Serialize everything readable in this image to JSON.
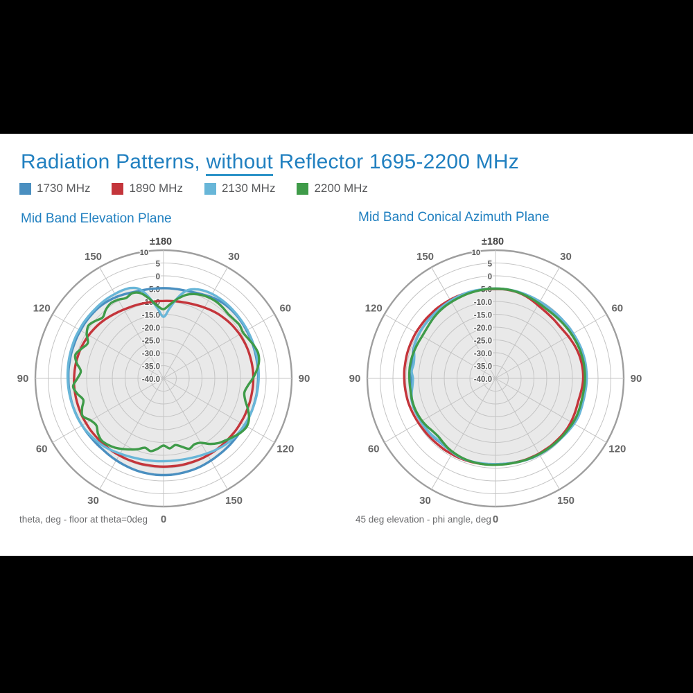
{
  "page": {
    "letterbox_color": "#000000",
    "slide_bg": "#ffffff"
  },
  "title": {
    "part1": "Radiation Patterns, ",
    "underlined": "without",
    "part2": " Reflector 1695-2200 MHz",
    "color": "#2180c0"
  },
  "legend": {
    "items": [
      {
        "label": "1730 MHz",
        "color": "#4a8fc0"
      },
      {
        "label": "1890 MHz",
        "color": "#c4353b"
      },
      {
        "label": "2130 MHz",
        "color": "#68b6d8"
      },
      {
        "label": "2200 MHz",
        "color": "#3f9b49"
      }
    ]
  },
  "styles": {
    "grid_color": "#c4c4c4",
    "outer_ring_color": "#9e9e9e",
    "area_fill": "#e9e9e9",
    "angle_label_color": "#666666",
    "top_label_color": "#444444",
    "tick_label_color": "#555555",
    "tick_halo": "#f7f7f7"
  },
  "chart_data": [
    {
      "type": "line",
      "polar": true,
      "title": "Mid Band Elevation Plane",
      "caption": "theta, deg - floor at theta=0deg",
      "angle_labels": [
        "±180",
        "30",
        "60",
        "90",
        "120",
        "150",
        "0",
        "30",
        "60",
        "90",
        "120",
        "150"
      ],
      "r_axis": {
        "min": -40,
        "max": 10,
        "step": 5,
        "tick_values": [
          10,
          5,
          0,
          -5,
          -10,
          -15,
          -20,
          -25,
          -30,
          -35,
          -40
        ],
        "tick_labels": [
          "10",
          "5",
          "0",
          "-5.0",
          "-10.0",
          "-15.0",
          "-20.0",
          "-25.0",
          "-30.0",
          "-35.0",
          "-40.0"
        ]
      },
      "angles": {
        "start": 0,
        "step": 5,
        "count": 72,
        "direction": "clockwise-from-top"
      },
      "series": [
        {
          "name": "1730 MHz",
          "color": "#4a8fc0",
          "values": [
            -4.8,
            -4.8,
            -4.8,
            -4.7,
            -4.4,
            -3.9,
            -3.3,
            -2.8,
            -2.5,
            -2.4,
            -2.4,
            -2.5,
            -2.6,
            -2.7,
            -2.8,
            -2.9,
            -3.0,
            -3.0,
            -3.1,
            -3.2,
            -3.2,
            -3.3,
            -3.3,
            -3.4,
            -3.4,
            -3.5,
            -3.5,
            -3.4,
            -3.3,
            -3.2,
            -3.0,
            -2.8,
            -2.6,
            -2.5,
            -2.4,
            -2.3,
            -2.3,
            -2.3,
            -2.4,
            -2.5,
            -2.7,
            -2.9,
            -3.1,
            -3.3,
            -3.5,
            -3.5,
            -3.5,
            -3.4,
            -3.3,
            -3.2,
            -3.1,
            -3.0,
            -3.0,
            -2.9,
            -2.9,
            -2.8,
            -2.8,
            -2.7,
            -2.7,
            -2.6,
            -2.6,
            -2.5,
            -2.5,
            -2.5,
            -2.6,
            -2.9,
            -3.3,
            -3.8,
            -4.3,
            -4.6,
            -4.7,
            -4.8
          ]
        },
        {
          "name": "1890 MHz",
          "color": "#c4353b",
          "values": [
            -9.8,
            -9.7,
            -9.5,
            -9.3,
            -9.0,
            -8.6,
            -8.1,
            -7.6,
            -7.1,
            -6.7,
            -6.3,
            -6.0,
            -5.7,
            -5.5,
            -5.3,
            -5.2,
            -5.1,
            -5.0,
            -5.0,
            -5.0,
            -5.1,
            -5.1,
            -5.2,
            -5.2,
            -5.3,
            -5.3,
            -5.4,
            -5.4,
            -5.4,
            -5.4,
            -5.4,
            -5.4,
            -5.5,
            -5.5,
            -5.5,
            -5.6,
            -5.6,
            -5.6,
            -5.6,
            -5.5,
            -5.5,
            -5.4,
            -5.4,
            -5.3,
            -5.3,
            -5.2,
            -5.2,
            -5.1,
            -5.1,
            -5.0,
            -5.0,
            -5.0,
            -5.0,
            -5.0,
            -5.1,
            -5.2,
            -5.3,
            -5.5,
            -5.7,
            -6.0,
            -6.3,
            -6.7,
            -7.1,
            -7.6,
            -8.1,
            -8.6,
            -9.0,
            -9.3,
            -9.5,
            -9.7,
            -9.8,
            -9.8
          ]
        },
        {
          "name": "2130 MHz",
          "color": "#68b6d8",
          "values": [
            -16,
            -12.5,
            -8,
            -4.5,
            -3,
            -2.3,
            -2,
            -1.9,
            -1.9,
            -2,
            -2.1,
            -2.2,
            -2.3,
            -2.4,
            -2.5,
            -2.6,
            -2.7,
            -2.8,
            -2.9,
            -3,
            -3.1,
            -3.2,
            -3.3,
            -3.4,
            -3.6,
            -3.8,
            -4.1,
            -4.5,
            -5,
            -5.6,
            -6.2,
            -6.7,
            -7.1,
            -7.4,
            -7.6,
            -7.7,
            -7.7,
            -7.6,
            -7.5,
            -7.3,
            -7.0,
            -6.6,
            -6.1,
            -5.5,
            -4.9,
            -4.4,
            -4.0,
            -3.6,
            -3.3,
            -3.1,
            -3.0,
            -2.9,
            -2.8,
            -2.7,
            -2.6,
            -2.5,
            -2.4,
            -2.3,
            -2.2,
            -2.1,
            -2.1,
            -2.0,
            -2.0,
            -2.0,
            -1.9,
            -1.9,
            -2.0,
            -2.1,
            -2.5,
            -4.0,
            -8.0,
            -12.5
          ]
        },
        {
          "name": "2200 MHz",
          "color": "#3f9b49",
          "values": [
            -13,
            -11,
            -8.5,
            -6.3,
            -5,
            -4.2,
            -3.8,
            -3.7,
            -4,
            -4.4,
            -4.2,
            -3.8,
            -4.2,
            -3.5,
            -2.5,
            -1.8,
            -2.2,
            -3.5,
            -5.2,
            -7,
            -8,
            -7,
            -5,
            -3.2,
            -2.5,
            -3.2,
            -4.5,
            -5.8,
            -7,
            -8.8,
            -11,
            -11.6,
            -10.8,
            -12.4,
            -13.6,
            -12.6,
            -13.8,
            -12.4,
            -11.2,
            -12,
            -10.6,
            -9.4,
            -8.2,
            -7,
            -6.2,
            -5.8,
            -6.6,
            -8,
            -7.2,
            -5.2,
            -6.2,
            -7.6,
            -5.8,
            -4.6,
            -6.4,
            -7.6,
            -5.6,
            -4.4,
            -6,
            -7.4,
            -5.4,
            -4.2,
            -5.2,
            -6.4,
            -5,
            -4.2,
            -4.6,
            -5.4,
            -4.6,
            -5.6,
            -8.5,
            -11.5
          ]
        }
      ]
    },
    {
      "type": "line",
      "polar": true,
      "title": "Mid Band Conical Azimuth Plane",
      "caption": "45 deg elevation - phi angle, deg",
      "angle_labels": [
        "±180",
        "30",
        "60",
        "90",
        "120",
        "150",
        "0",
        "30",
        "60",
        "90",
        "120",
        "150"
      ],
      "r_axis": {
        "min": -40,
        "max": 10,
        "step": 5,
        "tick_values": [
          10,
          5,
          0,
          -5,
          -10,
          -15,
          -20,
          -25,
          -30,
          -35,
          -40
        ],
        "tick_labels": [
          "10",
          "5",
          "0",
          "-5.0",
          "-10.0",
          "-15.0",
          "-20.0",
          "-25.0",
          "-30.0",
          "-35.0",
          "-40.0"
        ]
      },
      "angles": {
        "start": 0,
        "step": 5,
        "count": 72,
        "direction": "clockwise-from-top"
      },
      "series": [
        {
          "name": "1730 MHz",
          "color": "#4a8fc0",
          "values": [
            -5,
            -5,
            -5.1,
            -5.2,
            -5.3,
            -5.4,
            -5.5,
            -5.5,
            -5.5,
            -5.4,
            -5.3,
            -5.1,
            -5,
            -4.9,
            -4.8,
            -4.7,
            -4.7,
            -4.7,
            -4.8,
            -4.9,
            -5,
            -5,
            -4.9,
            -4.8,
            -5,
            -5.2,
            -5.4,
            -5.5,
            -5.6,
            -5.7,
            -5.8,
            -5.9,
            -6.1,
            -6.3,
            -6.4,
            -6.5,
            -6.5,
            -6.4,
            -6.3,
            -6.2,
            -6.2,
            -6.3,
            -6.6,
            -6.9,
            -7,
            -6.8,
            -6.6,
            -6.5,
            -6.4,
            -6.2,
            -6.1,
            -6.2,
            -6.5,
            -7,
            -7.2,
            -6.8,
            -6.9,
            -6.6,
            -6,
            -5.7,
            -5.5,
            -5.4,
            -5.3,
            -5.2,
            -5.2,
            -5.1,
            -5,
            -4.9,
            -4.9,
            -4.9,
            -5,
            -5
          ]
        },
        {
          "name": "1890 MHz",
          "color": "#c4353b",
          "values": [
            -5.2,
            -5.1,
            -5.2,
            -5.4,
            -5.8,
            -6.4,
            -7,
            -7.4,
            -7.6,
            -7.7,
            -7.8,
            -7.6,
            -7.2,
            -6.8,
            -6.4,
            -6.1,
            -5.9,
            -5.8,
            -5.8,
            -6,
            -6.3,
            -6.5,
            -6.4,
            -6.2,
            -6,
            -5.9,
            -5.9,
            -6,
            -6,
            -6.1,
            -6.1,
            -6.2,
            -6.2,
            -6.3,
            -6.4,
            -6.4,
            -6.4,
            -6.3,
            -6.2,
            -6.1,
            -6,
            -5.9,
            -5.9,
            -5.8,
            -5.8,
            -5.7,
            -5.6,
            -5.5,
            -5.3,
            -5.1,
            -4.9,
            -4.7,
            -4.6,
            -4.5,
            -4.4,
            -4.3,
            -4.3,
            -4.2,
            -4.2,
            -4.2,
            -4.2,
            -4.3,
            -4.3,
            -4.4,
            -4.4,
            -4.5,
            -4.6,
            -4.7,
            -4.8,
            -4.9,
            -5,
            -5.1
          ]
        },
        {
          "name": "2130 MHz",
          "color": "#68b6d8",
          "values": [
            -5,
            -5,
            -5,
            -5.1,
            -5.2,
            -5.3,
            -5.4,
            -5.5,
            -5.5,
            -5.4,
            -5.3,
            -5.2,
            -5,
            -4.8,
            -4.6,
            -4.5,
            -4.4,
            -4.4,
            -4.4,
            -4.5,
            -4.6,
            -4.6,
            -4.5,
            -4.4,
            -4.6,
            -4.9,
            -5.2,
            -5.4,
            -5.5,
            -5.6,
            -5.7,
            -5.8,
            -6,
            -6.2,
            -6.4,
            -6.5,
            -6.5,
            -6.5,
            -6.4,
            -6.3,
            -6.2,
            -6.3,
            -6.6,
            -7,
            -7.2,
            -7,
            -6.7,
            -6.6,
            -6.5,
            -6.3,
            -6.2,
            -6.3,
            -6.8,
            -7.5,
            -7.8,
            -7.2,
            -7.6,
            -7.2,
            -6.2,
            -5.7,
            -5.5,
            -5.4,
            -5.4,
            -5.3,
            -5.2,
            -5.1,
            -5,
            -4.9,
            -4.8,
            -4.8,
            -4.9,
            -5
          ]
        },
        {
          "name": "2200 MHz",
          "color": "#3f9b49",
          "values": [
            -5,
            -5,
            -5.1,
            -5.3,
            -5.6,
            -5.9,
            -6.2,
            -6.4,
            -6.4,
            -6.3,
            -6.1,
            -5.9,
            -5.7,
            -5.5,
            -5.3,
            -5.2,
            -5.1,
            -5.1,
            -5.1,
            -5.2,
            -5.3,
            -5.3,
            -5.2,
            -5.1,
            -5.2,
            -5.4,
            -5.5,
            -5.6,
            -5.7,
            -5.8,
            -5.9,
            -6,
            -6.1,
            -6.2,
            -6.3,
            -6.3,
            -6.3,
            -6.2,
            -6.2,
            -6.2,
            -6.3,
            -6.5,
            -6.8,
            -7.2,
            -7.8,
            -8.2,
            -8,
            -7.4,
            -6.9,
            -6.6,
            -6.4,
            -6.4,
            -6.5,
            -6.5,
            -6.4,
            -6.3,
            -6.3,
            -6.4,
            -6.6,
            -6.8,
            -7,
            -6.9,
            -6.6,
            -6.2,
            -5.9,
            -5.7,
            -5.6,
            -5.5,
            -5.3,
            -5.2,
            -5.1,
            -5
          ]
        }
      ]
    }
  ]
}
